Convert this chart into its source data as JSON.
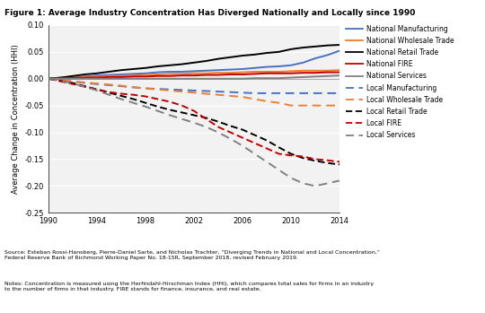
{
  "title": "Figure 1: Average Industry Concentration Has Diverged Nationally and Locally since 1990",
  "ylabel": "Average Change in Concentration (HHI)",
  "ylim": [
    -0.25,
    0.1
  ],
  "yticks": [
    -0.25,
    -0.2,
    -0.15,
    -0.1,
    -0.05,
    0.0,
    0.05,
    0.1
  ],
  "xlim": [
    1990,
    2014
  ],
  "xticks": [
    1990,
    1994,
    1998,
    2002,
    2006,
    2010,
    2014
  ],
  "years": [
    1990,
    1991,
    1992,
    1993,
    1994,
    1995,
    1996,
    1997,
    1998,
    1999,
    2000,
    2001,
    2002,
    2003,
    2004,
    2005,
    2006,
    2007,
    2008,
    2009,
    2010,
    2011,
    2012,
    2013,
    2014
  ],
  "national_manufacturing": [
    0.0,
    0.002,
    0.003,
    0.004,
    0.006,
    0.007,
    0.008,
    0.009,
    0.01,
    0.012,
    0.013,
    0.013,
    0.014,
    0.015,
    0.016,
    0.017,
    0.018,
    0.02,
    0.022,
    0.023,
    0.025,
    0.03,
    0.038,
    0.044,
    0.052
  ],
  "national_wholesale": [
    0.0,
    0.001,
    0.002,
    0.003,
    0.004,
    0.005,
    0.005,
    0.006,
    0.007,
    0.008,
    0.009,
    0.009,
    0.01,
    0.01,
    0.011,
    0.011,
    0.012,
    0.013,
    0.013,
    0.013,
    0.014,
    0.015,
    0.015,
    0.015,
    0.016
  ],
  "national_retail": [
    0.0,
    0.002,
    0.005,
    0.008,
    0.01,
    0.013,
    0.016,
    0.018,
    0.02,
    0.023,
    0.025,
    0.027,
    0.03,
    0.033,
    0.037,
    0.04,
    0.043,
    0.045,
    0.048,
    0.05,
    0.055,
    0.058,
    0.06,
    0.062,
    0.063
  ],
  "national_fire": [
    0.0,
    0.001,
    0.001,
    0.002,
    0.002,
    0.003,
    0.003,
    0.004,
    0.004,
    0.005,
    0.005,
    0.006,
    0.006,
    0.007,
    0.007,
    0.008,
    0.008,
    0.009,
    0.01,
    0.01,
    0.01,
    0.011,
    0.011,
    0.012,
    0.012
  ],
  "national_services": [
    0.0,
    0.0,
    0.0,
    0.0,
    0.0,
    0.0,
    0.0,
    0.0,
    0.0,
    0.0,
    0.0,
    0.0,
    0.0,
    0.0,
    0.0,
    0.0,
    0.0,
    0.001,
    0.001,
    0.001,
    0.002,
    0.003,
    0.004,
    0.005,
    0.006
  ],
  "local_manufacturing": [
    0.0,
    -0.003,
    -0.005,
    -0.008,
    -0.01,
    -0.012,
    -0.014,
    -0.016,
    -0.018,
    -0.019,
    -0.02,
    -0.021,
    -0.022,
    -0.023,
    -0.024,
    -0.025,
    -0.026,
    -0.027,
    -0.027,
    -0.027,
    -0.027,
    -0.027,
    -0.027,
    -0.027,
    -0.027
  ],
  "local_wholesale": [
    0.0,
    -0.003,
    -0.005,
    -0.007,
    -0.009,
    -0.011,
    -0.013,
    -0.016,
    -0.018,
    -0.02,
    -0.022,
    -0.024,
    -0.026,
    -0.028,
    -0.03,
    -0.032,
    -0.034,
    -0.038,
    -0.042,
    -0.045,
    -0.05,
    -0.05,
    -0.05,
    -0.05,
    -0.05
  ],
  "local_retail": [
    0.0,
    -0.004,
    -0.008,
    -0.014,
    -0.02,
    -0.026,
    -0.032,
    -0.038,
    -0.045,
    -0.052,
    -0.058,
    -0.063,
    -0.068,
    -0.073,
    -0.08,
    -0.088,
    -0.095,
    -0.105,
    -0.115,
    -0.128,
    -0.14,
    -0.148,
    -0.153,
    -0.157,
    -0.16
  ],
  "local_fire": [
    0.0,
    -0.005,
    -0.01,
    -0.015,
    -0.02,
    -0.025,
    -0.028,
    -0.03,
    -0.033,
    -0.038,
    -0.043,
    -0.05,
    -0.06,
    -0.075,
    -0.09,
    -0.1,
    -0.11,
    -0.12,
    -0.13,
    -0.14,
    -0.143,
    -0.145,
    -0.15,
    -0.152,
    -0.155
  ],
  "local_services": [
    0.0,
    -0.004,
    -0.009,
    -0.015,
    -0.022,
    -0.03,
    -0.038,
    -0.045,
    -0.052,
    -0.06,
    -0.068,
    -0.075,
    -0.082,
    -0.09,
    -0.1,
    -0.112,
    -0.125,
    -0.14,
    -0.155,
    -0.17,
    -0.185,
    -0.195,
    -0.2,
    -0.195,
    -0.19
  ],
  "source_text": "Source: Esteban Rossi-Hansberg, Pierre-Daniel Sarte, and Nicholas Trachter, “Diverging Trends in National and Local Concentration,”\nFederal Reserve Bank of Richmond Working Paper No. 18-15R, September 2018, revised February 2019.",
  "notes_text": "Notes: Concentration is measured using the Herfindahl-Hirschman Index (HHI), which compares total sales for firms in an industry\nto the number of firms in that industry. FIRE stands for finance, insurance, and real estate.",
  "color_blue": "#4472C4",
  "color_orange": "#ED7D31",
  "color_black": "#000000",
  "color_red": "#C00000",
  "color_gray": "#808080",
  "bg_color": "#F2F2F2"
}
